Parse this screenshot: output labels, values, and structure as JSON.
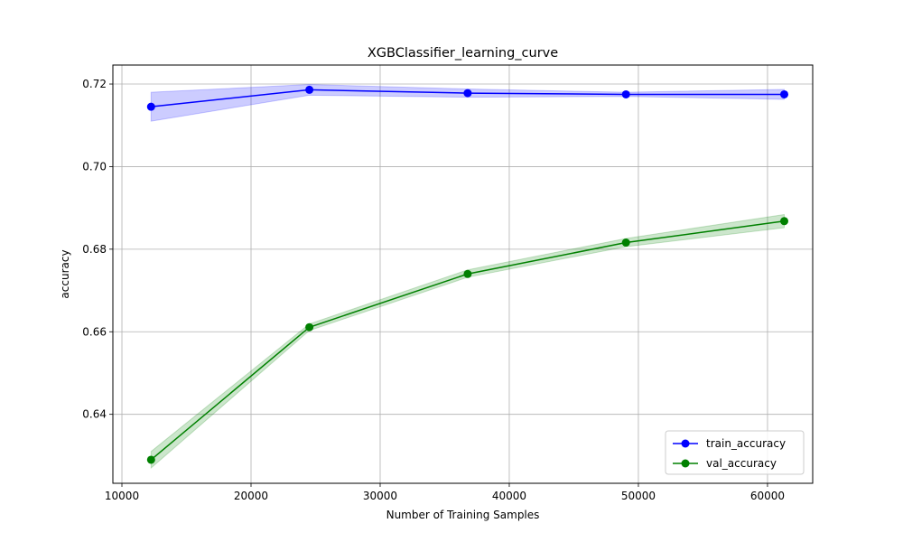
{
  "chart_data": {
    "type": "line",
    "title": "XGBClassifier_learning_curve",
    "xlabel": "Number of Training Samples",
    "ylabel": "accuracy",
    "xlim": [
      9300,
      63500
    ],
    "ylim": [
      0.6233,
      0.7246
    ],
    "xticks": [
      10000,
      20000,
      30000,
      40000,
      50000,
      60000
    ],
    "xtick_labels": [
      "10000",
      "20000",
      "30000",
      "40000",
      "50000",
      "60000"
    ],
    "yticks": [
      0.64,
      0.66,
      0.68,
      0.7,
      0.72
    ],
    "ytick_labels": [
      "0.64",
      "0.66",
      "0.68",
      "0.70",
      "0.72"
    ],
    "grid": true,
    "legend_position": "lower-right",
    "x": [
      12259,
      24519,
      36778,
      49038,
      61297
    ],
    "series": [
      {
        "name": "train_accuracy",
        "color": "#0000ff",
        "band_color": "#0000ff",
        "values": [
          0.7145,
          0.7186,
          0.7178,
          0.7175,
          0.7175
        ],
        "lower": [
          0.711,
          0.7173,
          0.7168,
          0.717,
          0.7163
        ],
        "upper": [
          0.718,
          0.7199,
          0.7188,
          0.718,
          0.7187
        ]
      },
      {
        "name": "val_accuracy",
        "color": "#008000",
        "band_color": "#008000",
        "values": [
          0.629,
          0.6611,
          0.674,
          0.6816,
          0.6868
        ],
        "lower": [
          0.627,
          0.6603,
          0.6732,
          0.6806,
          0.6852
        ],
        "upper": [
          0.631,
          0.6619,
          0.675,
          0.6826,
          0.6884
        ]
      }
    ]
  }
}
